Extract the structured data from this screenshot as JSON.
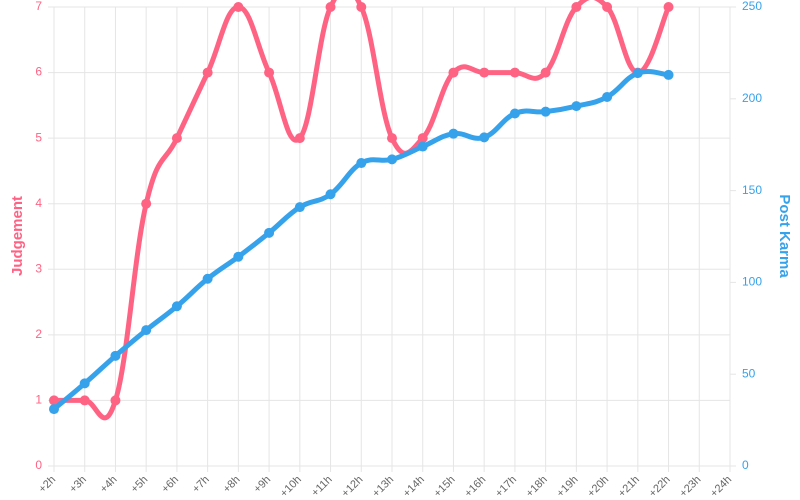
{
  "chart_data": {
    "type": "line",
    "categories": [
      "+2h",
      "+3h",
      "+4h",
      "+5h",
      "+6h",
      "+7h",
      "+8h",
      "+9h",
      "+10h",
      "+11h",
      "+12h",
      "+13h",
      "+14h",
      "+15h",
      "+16h",
      "+17h",
      "+18h",
      "+19h",
      "+20h",
      "+21h",
      "+22h",
      "+23h",
      "+24h"
    ],
    "y_label": "Judgement",
    "y2_label": "Post Karma",
    "ylim": [
      0,
      7
    ],
    "yticks": [
      0,
      1,
      2,
      3,
      4,
      5,
      6,
      7
    ],
    "y2lim": [
      0,
      250
    ],
    "y2ticks": [
      0,
      50,
      100,
      150,
      200,
      250
    ],
    "grid": true,
    "series": [
      {
        "name": "Judgement",
        "color": "#ff6384",
        "values": [
          1,
          1,
          1,
          4,
          5,
          6,
          7,
          6,
          5,
          7,
          7,
          5,
          5,
          6,
          6,
          6,
          6,
          7,
          7,
          6,
          7,
          null,
          null
        ]
      },
      {
        "name": "Post Karma",
        "color": "#36a2eb",
        "axis": "y2",
        "values": [
          31,
          45,
          60,
          74,
          87,
          102,
          114,
          127,
          141,
          148,
          165,
          167,
          174,
          181,
          179,
          192,
          193,
          196,
          201,
          214,
          213,
          null,
          null
        ]
      }
    ]
  }
}
